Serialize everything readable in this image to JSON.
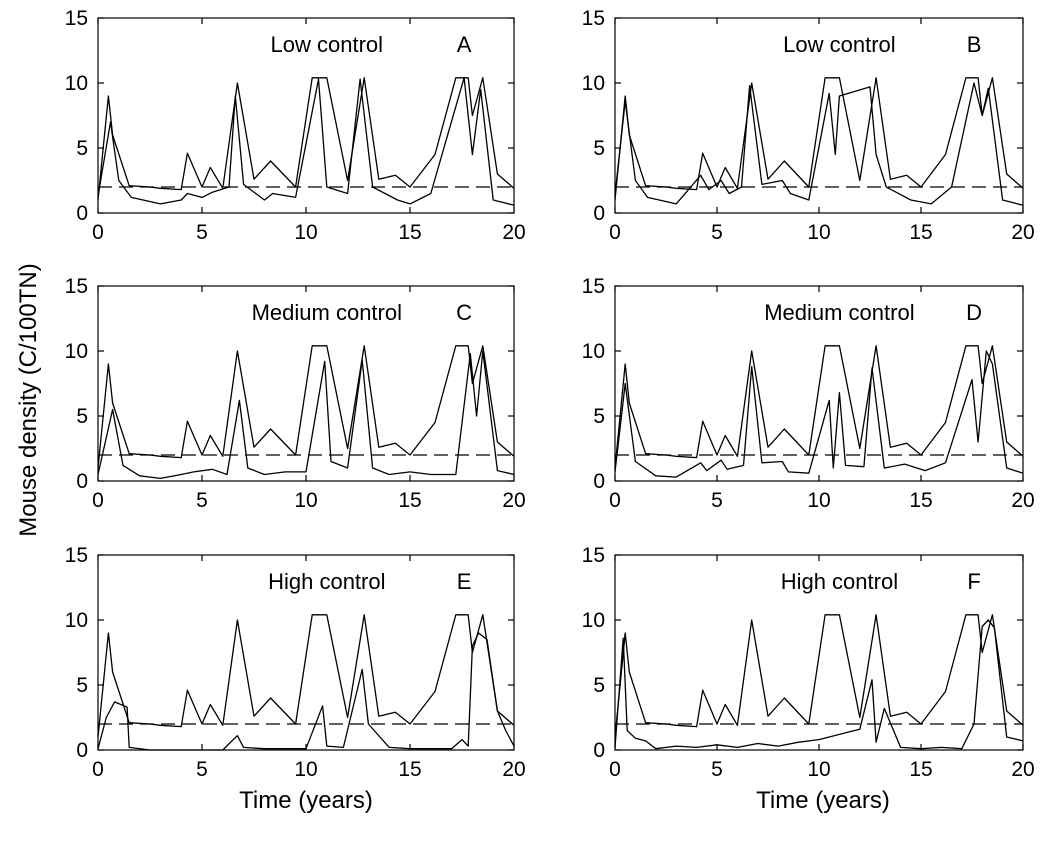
{
  "figure": {
    "ylabel": "Mouse density (C/100TN)",
    "xlabel": "Time (years)",
    "colors": {
      "line": "#000000",
      "background": "#ffffff"
    }
  },
  "chart_data": [
    {
      "panel": "A",
      "type": "line",
      "label": "Low control",
      "letter": "A",
      "xlim": [
        0,
        20
      ],
      "ylim": [
        0,
        15
      ],
      "xticks": [
        0,
        5,
        10,
        15,
        20
      ],
      "yticks": [
        0,
        5,
        10,
        15
      ],
      "xlabel": "",
      "ylabel": "",
      "threshold": 2.0,
      "series": [
        {
          "x": [
            0,
            0.5,
            0.7,
            1.5,
            2.5,
            3.0,
            4.0,
            4.3,
            5.0,
            5.4,
            6.0,
            6.7,
            7.5,
            8.3,
            9.5,
            10.3,
            11.0,
            12.0,
            12.8,
            13.5,
            14.3,
            15.0,
            16.2,
            17.2,
            17.8,
            18.0,
            18.5,
            19.2,
            20.0
          ],
          "y": [
            1.0,
            9.0,
            6.0,
            2.1,
            2.0,
            1.9,
            1.8,
            4.6,
            2.0,
            3.5,
            1.9,
            10.0,
            2.6,
            4.0,
            2.0,
            10.4,
            10.4,
            2.5,
            10.4,
            2.6,
            2.9,
            2.0,
            4.5,
            10.4,
            10.4,
            7.5,
            10.4,
            3.0,
            1.9
          ]
        },
        {
          "x": [
            0,
            0.6,
            1.0,
            1.6,
            3.0,
            4.0,
            4.3,
            5.0,
            5.5,
            6.3,
            6.6,
            7.0,
            8.0,
            8.4,
            9.5,
            10.6,
            11.0,
            12.0,
            12.6,
            13.2,
            14.4,
            15.0,
            16.0,
            17.6,
            18.0,
            18.4,
            19.0,
            20.0
          ],
          "y": [
            1.3,
            7.0,
            2.5,
            1.2,
            0.7,
            1.0,
            1.5,
            1.2,
            1.6,
            2.0,
            9.0,
            2.2,
            1.0,
            1.5,
            1.2,
            10.3,
            2.0,
            1.5,
            10.3,
            2.0,
            1.0,
            0.7,
            1.5,
            10.4,
            4.5,
            9.5,
            1.0,
            0.6
          ]
        }
      ]
    },
    {
      "panel": "B",
      "type": "line",
      "label": "Low control",
      "letter": "B",
      "xlim": [
        0,
        20
      ],
      "ylim": [
        0,
        15
      ],
      "xticks": [
        0,
        5,
        10,
        15,
        20
      ],
      "yticks": [
        0,
        5,
        10,
        15
      ],
      "xlabel": "",
      "ylabel": "",
      "threshold": 2.0,
      "series": [
        {
          "x": [
            0,
            0.5,
            0.7,
            1.5,
            2.5,
            3.0,
            4.0,
            4.3,
            5.0,
            5.4,
            6.0,
            6.7,
            7.5,
            8.3,
            9.5,
            10.3,
            11.0,
            12.0,
            12.8,
            13.5,
            14.3,
            15.0,
            16.2,
            17.2,
            17.8,
            18.0,
            18.5,
            19.2,
            20.0
          ],
          "y": [
            1.0,
            9.0,
            6.0,
            2.1,
            2.0,
            1.9,
            1.8,
            4.6,
            2.0,
            3.5,
            1.9,
            10.0,
            2.6,
            4.0,
            2.0,
            10.4,
            10.4,
            2.5,
            10.4,
            2.6,
            2.9,
            2.0,
            4.5,
            10.4,
            10.4,
            7.5,
            10.4,
            3.0,
            1.9
          ]
        },
        {
          "x": [
            0,
            0.5,
            1.0,
            1.6,
            3.0,
            4.2,
            4.6,
            5.2,
            5.6,
            6.2,
            6.6,
            7.2,
            8.2,
            8.6,
            9.5,
            10.5,
            10.8,
            11.0,
            12.5,
            12.8,
            13.3,
            14.5,
            15.5,
            16.5,
            17.6,
            18.0,
            18.3,
            19.0,
            20.0
          ],
          "y": [
            1.4,
            8.6,
            2.5,
            1.2,
            0.7,
            2.9,
            1.8,
            2.5,
            1.5,
            2.0,
            9.8,
            2.2,
            2.5,
            1.5,
            1.0,
            9.2,
            4.5,
            9.0,
            9.7,
            4.5,
            2.0,
            1.0,
            0.7,
            2.0,
            10.0,
            7.5,
            9.6,
            1.0,
            0.6
          ]
        }
      ]
    },
    {
      "panel": "C",
      "type": "line",
      "label": "Medium control",
      "letter": "C",
      "xlim": [
        0,
        20
      ],
      "ylim": [
        0,
        15
      ],
      "xticks": [
        0,
        5,
        10,
        15,
        20
      ],
      "yticks": [
        0,
        5,
        10,
        15
      ],
      "xlabel": "",
      "ylabel": "",
      "threshold": 2.0,
      "series": [
        {
          "x": [
            0,
            0.5,
            0.7,
            1.5,
            2.5,
            3.0,
            4.0,
            4.3,
            5.0,
            5.4,
            6.0,
            6.7,
            7.5,
            8.3,
            9.5,
            10.3,
            11.0,
            12.0,
            12.8,
            13.5,
            14.3,
            15.0,
            16.2,
            17.2,
            17.8,
            18.0,
            18.5,
            19.2,
            20.0
          ],
          "y": [
            1.0,
            9.0,
            6.0,
            2.1,
            2.0,
            1.9,
            1.8,
            4.6,
            2.0,
            3.5,
            1.9,
            10.0,
            2.6,
            4.0,
            2.0,
            10.4,
            10.4,
            2.5,
            10.4,
            2.6,
            2.9,
            2.0,
            4.5,
            10.4,
            10.4,
            7.5,
            10.4,
            3.0,
            1.9
          ]
        },
        {
          "x": [
            0,
            0.7,
            1.2,
            2.0,
            3.0,
            4.0,
            4.6,
            5.5,
            6.2,
            6.8,
            7.2,
            8.0,
            9.0,
            10.0,
            10.9,
            11.2,
            12.0,
            12.7,
            13.2,
            14.0,
            15.0,
            16.0,
            17.2,
            17.9,
            18.2,
            18.5,
            19.2,
            20.0
          ],
          "y": [
            0.5,
            5.5,
            1.2,
            0.4,
            0.2,
            0.5,
            0.7,
            0.9,
            0.5,
            6.2,
            1.0,
            0.5,
            0.7,
            0.7,
            9.2,
            1.5,
            1.0,
            9.3,
            1.0,
            0.5,
            0.7,
            0.5,
            0.5,
            9.8,
            5.0,
            10.0,
            0.8,
            0.5
          ]
        }
      ]
    },
    {
      "panel": "D",
      "type": "line",
      "label": "Medium control",
      "letter": "D",
      "xlim": [
        0,
        20
      ],
      "ylim": [
        0,
        15
      ],
      "xticks": [
        0,
        5,
        10,
        15,
        20
      ],
      "yticks": [
        0,
        5,
        10,
        15
      ],
      "xlabel": "",
      "ylabel": "",
      "threshold": 2.0,
      "series": [
        {
          "x": [
            0,
            0.5,
            0.7,
            1.5,
            2.5,
            3.0,
            4.0,
            4.3,
            5.0,
            5.4,
            6.0,
            6.7,
            7.5,
            8.3,
            9.5,
            10.3,
            11.0,
            12.0,
            12.8,
            13.5,
            14.3,
            15.0,
            16.2,
            17.2,
            17.8,
            18.0,
            18.5,
            19.2,
            20.0
          ],
          "y": [
            1.0,
            9.0,
            6.0,
            2.1,
            2.0,
            1.9,
            1.8,
            4.6,
            2.0,
            3.5,
            1.9,
            10.0,
            2.6,
            4.0,
            2.0,
            10.4,
            10.4,
            2.5,
            10.4,
            2.6,
            2.9,
            2.0,
            4.5,
            10.4,
            10.4,
            7.5,
            10.4,
            3.0,
            1.9
          ]
        },
        {
          "x": [
            0,
            0.5,
            1.0,
            2.0,
            3.0,
            4.2,
            4.5,
            5.2,
            5.5,
            6.3,
            6.7,
            7.2,
            8.2,
            8.5,
            9.5,
            10.5,
            10.7,
            11.0,
            11.3,
            12.2,
            12.6,
            13.2,
            14.2,
            15.2,
            16.2,
            17.5,
            17.8,
            18.2,
            18.5,
            19.2,
            20.0
          ],
          "y": [
            0.7,
            7.5,
            1.5,
            0.4,
            0.3,
            1.4,
            0.8,
            1.6,
            0.9,
            1.2,
            8.8,
            1.4,
            1.5,
            0.7,
            0.6,
            6.2,
            1.0,
            6.8,
            1.2,
            1.1,
            8.7,
            1.0,
            1.3,
            0.8,
            1.4,
            7.8,
            3.0,
            10.0,
            9.0,
            1.0,
            0.6
          ]
        }
      ]
    },
    {
      "panel": "E",
      "type": "line",
      "label": "High control",
      "letter": "E",
      "xlim": [
        0,
        20
      ],
      "ylim": [
        0,
        15
      ],
      "xticks": [
        0,
        5,
        10,
        15,
        20
      ],
      "yticks": [
        0,
        5,
        10,
        15
      ],
      "xlabel": "",
      "ylabel": "",
      "threshold": 2.0,
      "series": [
        {
          "x": [
            0,
            0.5,
            0.7,
            1.5,
            2.5,
            3.0,
            4.0,
            4.3,
            5.0,
            5.4,
            6.0,
            6.7,
            7.5,
            8.3,
            9.5,
            10.3,
            11.0,
            12.0,
            12.8,
            13.5,
            14.3,
            15.0,
            16.2,
            17.2,
            17.8,
            18.0,
            18.5,
            19.2,
            20.0
          ],
          "y": [
            1.0,
            9.0,
            6.0,
            2.1,
            2.0,
            1.9,
            1.8,
            4.6,
            2.0,
            3.5,
            1.9,
            10.0,
            2.6,
            4.0,
            2.0,
            10.4,
            10.4,
            2.5,
            10.4,
            2.6,
            2.9,
            2.0,
            4.5,
            10.4,
            10.4,
            7.5,
            10.4,
            3.0,
            1.9
          ]
        },
        {
          "x": [
            0,
            0.4,
            0.8,
            1.4,
            1.5,
            2.5,
            4.0,
            6.0,
            6.5,
            6.7,
            7.0,
            8.0,
            10.0,
            10.8,
            11.0,
            11.8,
            12.7,
            13.0,
            14.0,
            15.0,
            17.0,
            17.5,
            17.8,
            18.0,
            18.3,
            18.7,
            19.2,
            19.6,
            20.0
          ],
          "y": [
            0.1,
            2.5,
            3.7,
            3.3,
            0.2,
            0.0,
            0.0,
            0.0,
            0.8,
            1.1,
            0.2,
            0.1,
            0.1,
            3.4,
            0.3,
            0.2,
            6.2,
            2.0,
            0.2,
            0.1,
            0.1,
            0.8,
            0.3,
            8.0,
            9.0,
            8.5,
            3.0,
            1.5,
            0.3
          ]
        }
      ]
    },
    {
      "panel": "F",
      "type": "line",
      "label": "High control",
      "letter": "F",
      "xlim": [
        0,
        20
      ],
      "ylim": [
        0,
        15
      ],
      "xticks": [
        0,
        5,
        10,
        15,
        20
      ],
      "yticks": [
        0,
        5,
        10,
        15
      ],
      "xlabel": "",
      "ylabel": "",
      "threshold": 2.0,
      "series": [
        {
          "x": [
            0,
            0.5,
            0.7,
            1.5,
            2.5,
            3.0,
            4.0,
            4.3,
            5.0,
            5.4,
            6.0,
            6.7,
            7.5,
            8.3,
            9.5,
            10.3,
            11.0,
            12.0,
            12.8,
            13.5,
            14.3,
            15.0,
            16.2,
            17.2,
            17.8,
            18.0,
            18.5,
            19.2,
            20.0
          ],
          "y": [
            1.0,
            9.0,
            6.0,
            2.1,
            2.0,
            1.9,
            1.8,
            4.6,
            2.0,
            3.5,
            1.9,
            10.0,
            2.6,
            4.0,
            2.0,
            10.4,
            10.4,
            2.5,
            10.4,
            2.6,
            2.9,
            2.0,
            4.5,
            10.4,
            10.4,
            7.5,
            10.4,
            3.0,
            1.9
          ]
        },
        {
          "x": [
            0,
            0.4,
            0.6,
            1.0,
            1.5,
            2.0,
            3.0,
            4.0,
            5.0,
            6.0,
            7.0,
            8.0,
            9.0,
            10.0,
            11.0,
            11.5,
            12.0,
            12.6,
            12.8,
            13.2,
            14.0,
            15.0,
            16.0,
            17.0,
            17.6,
            18.0,
            18.3,
            18.6,
            19.2,
            20.0
          ],
          "y": [
            0.2,
            8.6,
            1.5,
            0.9,
            0.7,
            0.1,
            0.3,
            0.2,
            0.4,
            0.2,
            0.5,
            0.3,
            0.6,
            0.8,
            1.2,
            1.4,
            1.6,
            5.4,
            0.6,
            3.2,
            0.2,
            0.1,
            0.2,
            0.1,
            2.0,
            9.5,
            10.0,
            9.4,
            1.0,
            0.7
          ]
        }
      ]
    }
  ]
}
